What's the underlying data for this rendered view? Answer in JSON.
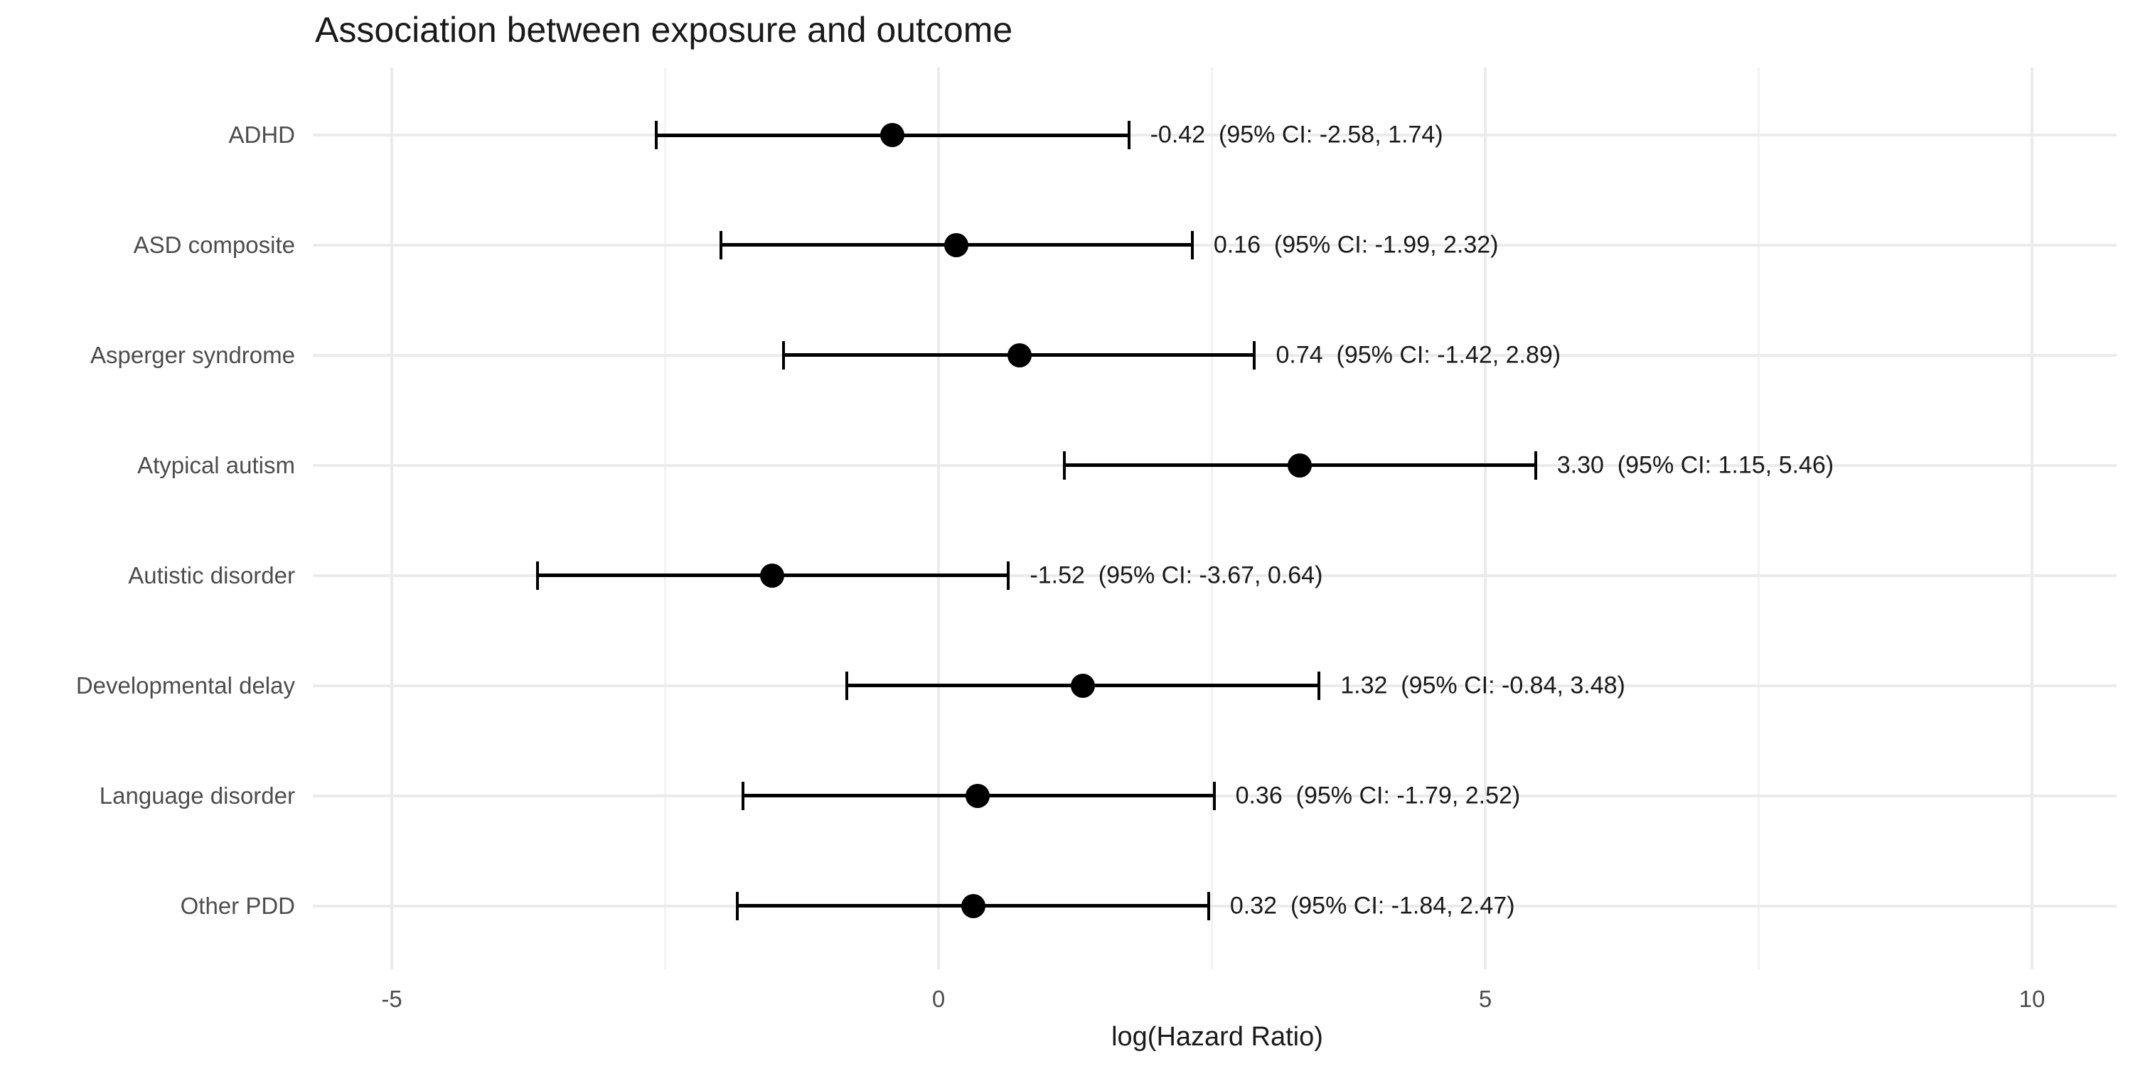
{
  "title": "Association between exposure and outcome",
  "chart_data": {
    "type": "scatter",
    "subtype": "forest-plot",
    "title": "Association between exposure and outcome",
    "xlabel": "log(Hazard Ratio)",
    "ylabel": "",
    "xlim": [
      -5.7,
      10.8
    ],
    "grid": "on",
    "legend": "none",
    "x_ticks": [
      {
        "value": -5,
        "label": "-5"
      },
      {
        "value": 0,
        "label": "0"
      },
      {
        "value": 5,
        "label": "5"
      },
      {
        "value": 10,
        "label": "10"
      }
    ],
    "x_minor_gridlines": [
      -2.5,
      2.5,
      7.5
    ],
    "categories": [
      "ADHD",
      "ASD composite",
      "Asperger syndrome",
      "Atypical autism",
      "Autistic disorder",
      "Developmental delay",
      "Language disorder",
      "Other PDD"
    ],
    "series": [
      {
        "name": "log hazard ratio (95% CI)",
        "points": [
          {
            "category": "ADHD",
            "estimate": -0.42,
            "ci_low": -2.58,
            "ci_high": 1.74,
            "annotation": "-0.42  (95% CI: -2.58, 1.74)"
          },
          {
            "category": "ASD composite",
            "estimate": 0.16,
            "ci_low": -1.99,
            "ci_high": 2.32,
            "annotation": "0.16  (95% CI: -1.99, 2.32)"
          },
          {
            "category": "Asperger syndrome",
            "estimate": 0.74,
            "ci_low": -1.42,
            "ci_high": 2.89,
            "annotation": "0.74  (95% CI: -1.42, 2.89)"
          },
          {
            "category": "Atypical autism",
            "estimate": 3.3,
            "ci_low": 1.15,
            "ci_high": 5.46,
            "annotation": "3.30  (95% CI: 1.15, 5.46)"
          },
          {
            "category": "Autistic disorder",
            "estimate": -1.52,
            "ci_low": -3.67,
            "ci_high": 0.64,
            "annotation": "-1.52  (95% CI: -3.67, 0.64)"
          },
          {
            "category": "Developmental delay",
            "estimate": 1.32,
            "ci_low": -0.84,
            "ci_high": 3.48,
            "annotation": "1.32  (95% CI: -0.84, 3.48)"
          },
          {
            "category": "Language disorder",
            "estimate": 0.36,
            "ci_low": -1.79,
            "ci_high": 2.52,
            "annotation": "0.36  (95% CI: -1.79, 2.52)"
          },
          {
            "category": "Other PDD",
            "estimate": 0.32,
            "ci_low": -1.84,
            "ci_high": 2.47,
            "annotation": "0.32  (95% CI: -1.84, 2.47)"
          }
        ]
      }
    ],
    "colors": {
      "background": "#FFFFFF",
      "marker": "#000000",
      "errorbar": "#000000",
      "grid_major": "#EBEBEB",
      "grid_minor": "#F3F3F3",
      "axis_text": "#4D4D4D",
      "text": "#1A1A1A"
    }
  }
}
